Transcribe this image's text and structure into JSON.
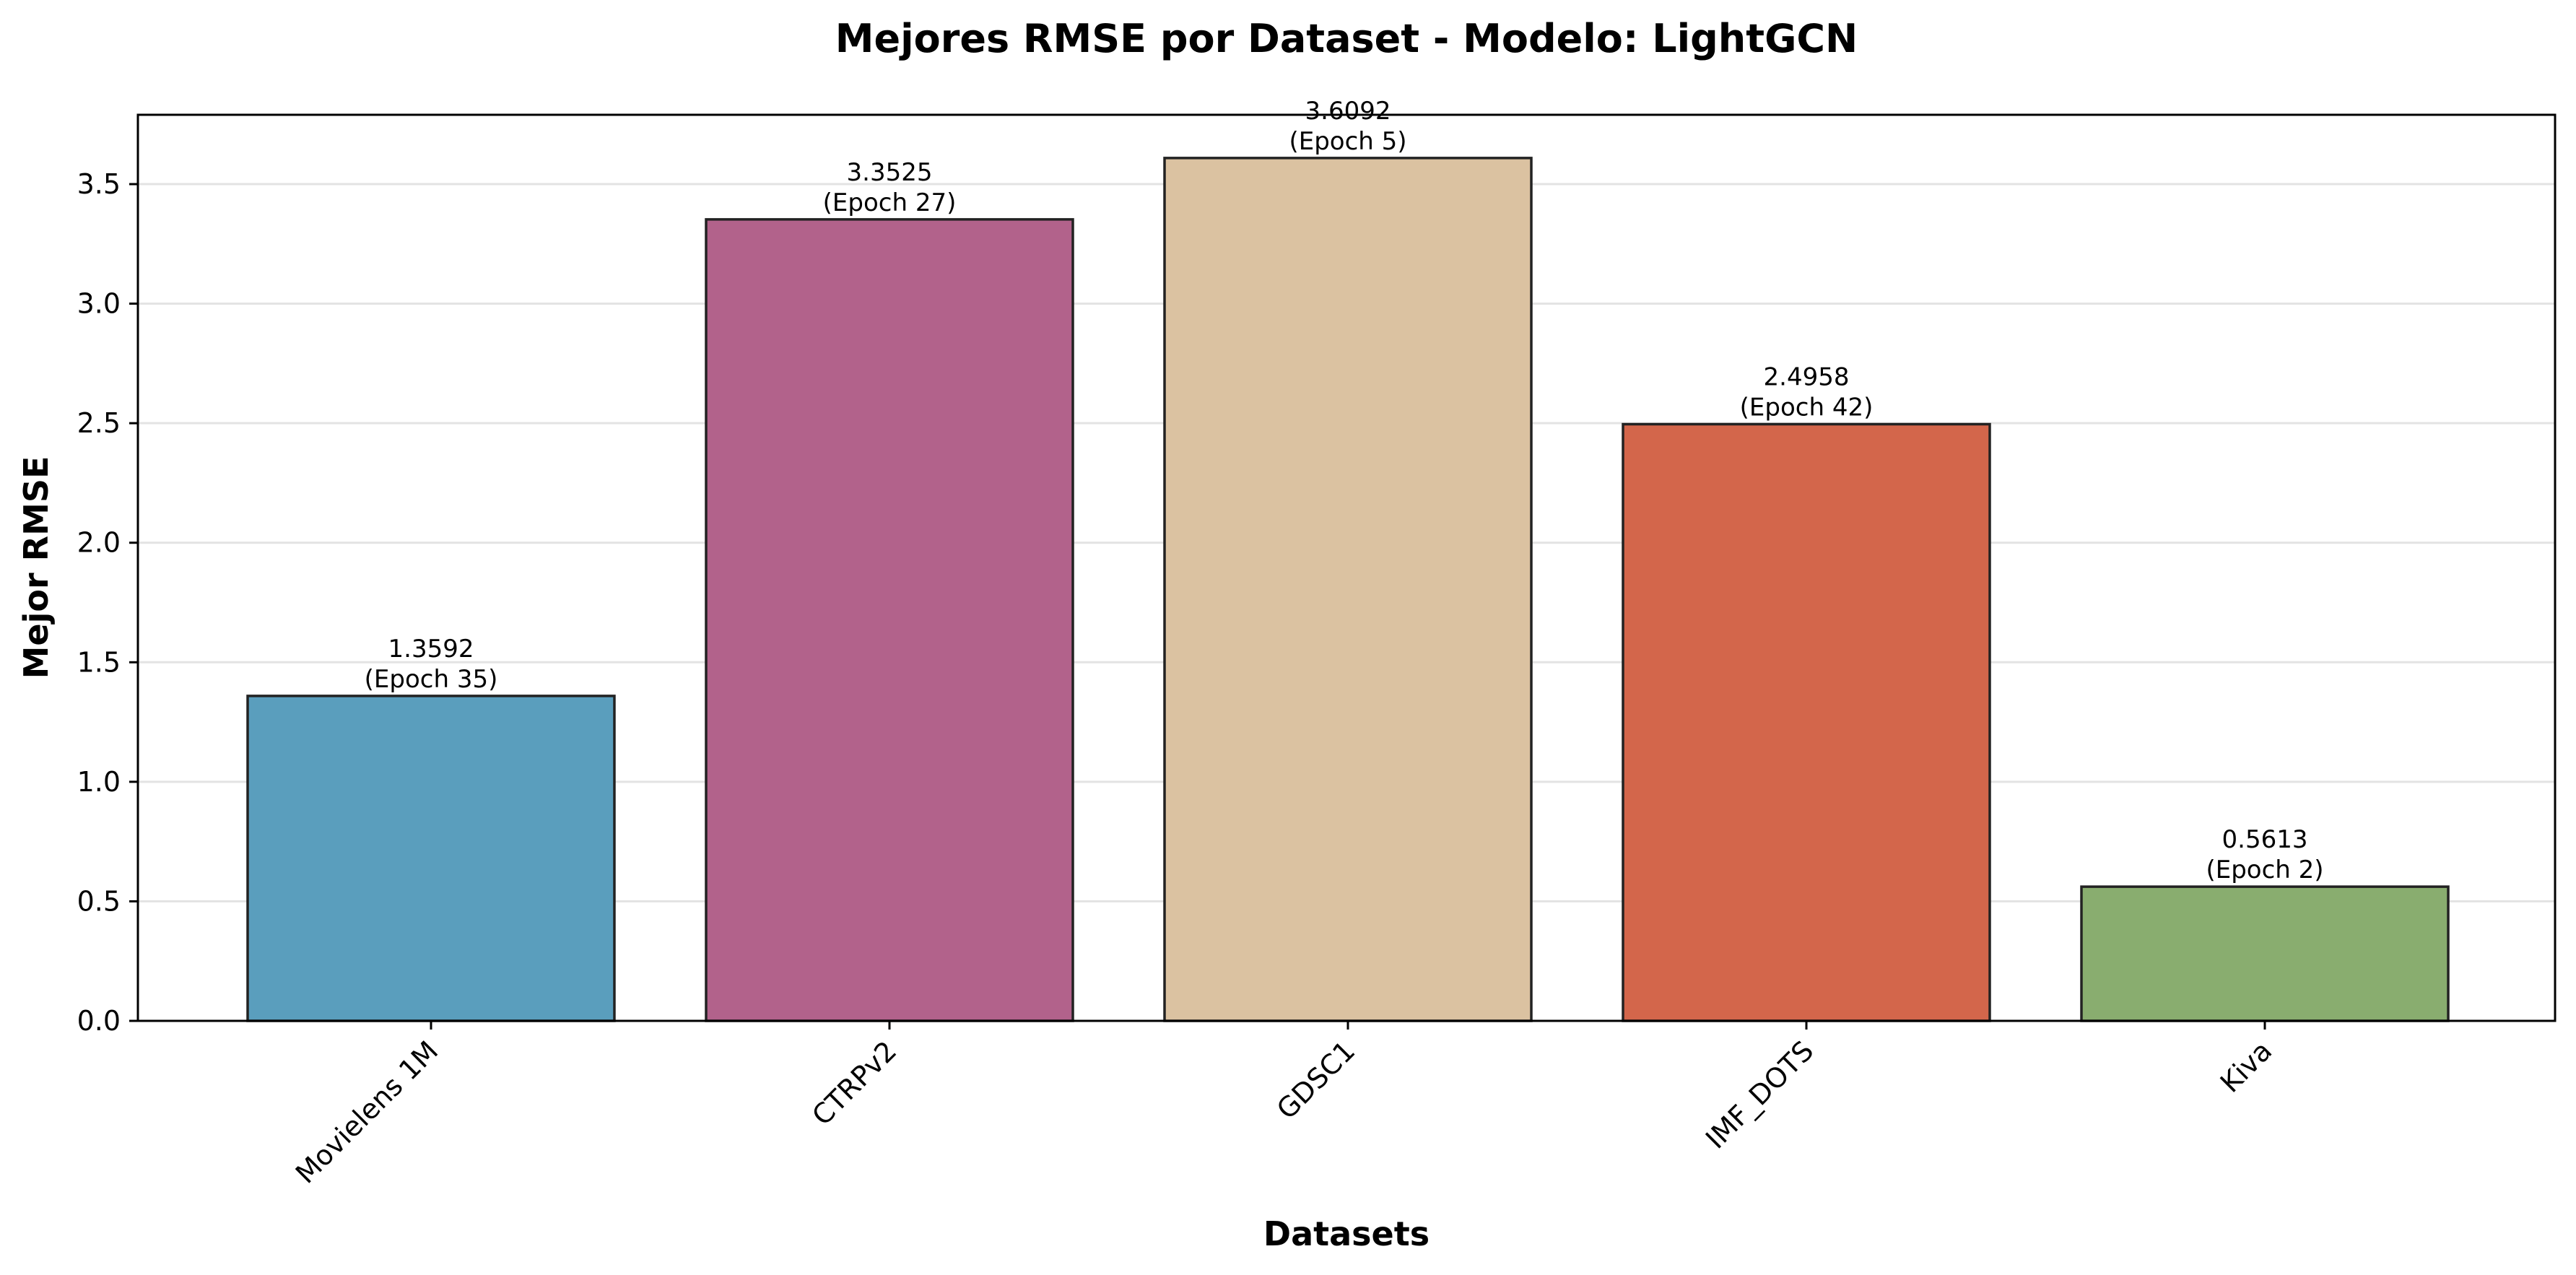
{
  "chart_data": {
    "type": "bar",
    "title": "Mejores RMSE por Dataset - Modelo: LightGCN",
    "xlabel": "Datasets",
    "ylabel": "Mejor RMSE",
    "categories": [
      "Movielens 1M",
      "CTRPv2",
      "GDSC1",
      "IMF_DOTS",
      "Kiva"
    ],
    "values": [
      1.3592,
      3.3525,
      3.6092,
      2.4958,
      0.5613
    ],
    "value_labels": [
      "1.3592",
      "3.3525",
      "3.6092",
      "2.4958",
      "0.5613"
    ],
    "epoch_labels": [
      "(Epoch 35)",
      "(Epoch 27)",
      "(Epoch 5)",
      "(Epoch 42)",
      "(Epoch 2)"
    ],
    "colors": [
      "#5a9ebd",
      "#b2628b",
      "#dbc2a1",
      "#d3664b",
      "#89ad6f"
    ],
    "ylim": [
      0,
      3.79
    ],
    "yticks": [
      0.0,
      0.5,
      1.0,
      1.5,
      2.0,
      2.5,
      3.0,
      3.5
    ],
    "ytick_labels": [
      "0.0",
      "0.5",
      "1.0",
      "1.5",
      "2.0",
      "2.5",
      "3.0",
      "3.5"
    ],
    "grid": "horizontal",
    "legend": "none"
  }
}
